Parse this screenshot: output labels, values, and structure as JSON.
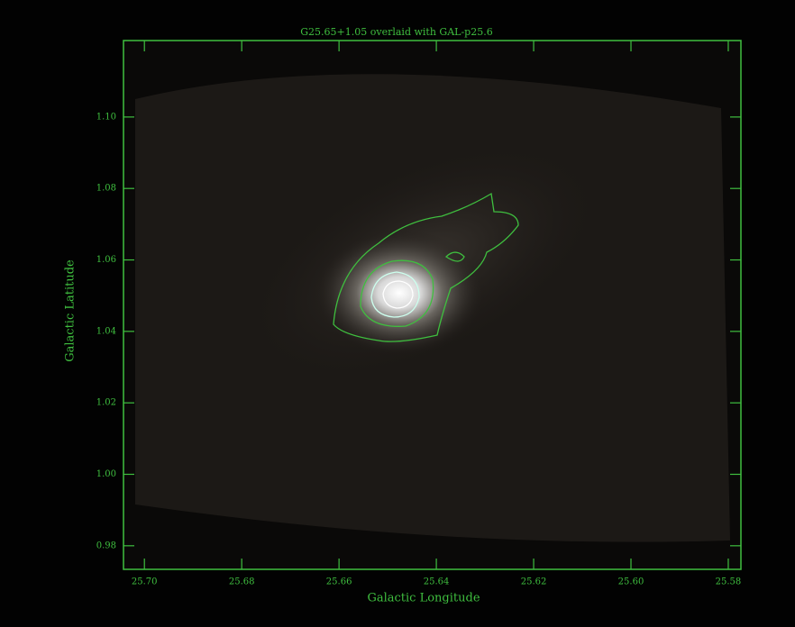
{
  "chart_data": {
    "type": "image",
    "title": "G25.65+1.05 overlaid with GAL-p25.6",
    "xlabel": "Galactic Longitude",
    "ylabel": "Galactic Latitude",
    "color": "#3fbf3f",
    "xlim": [
      25.7043,
      25.5774
    ],
    "ylim": [
      0.9734,
      1.1214
    ],
    "xticks": [
      {
        "value": 25.7,
        "label": "25.70"
      },
      {
        "value": 25.68,
        "label": "25.68"
      },
      {
        "value": 25.66,
        "label": "25.66"
      },
      {
        "value": 25.64,
        "label": "25.64"
      },
      {
        "value": 25.62,
        "label": "25.62"
      },
      {
        "value": 25.6,
        "label": "25.60"
      },
      {
        "value": 25.58,
        "label": "25.58"
      }
    ],
    "yticks": [
      {
        "value": 0.98,
        "label": "0.98"
      },
      {
        "value": 1.0,
        "label": "1.00"
      },
      {
        "value": 1.02,
        "label": "1.02"
      },
      {
        "value": 1.04,
        "label": "1.04"
      },
      {
        "value": 1.06,
        "label": "1.06"
      },
      {
        "value": 1.08,
        "label": "1.08"
      },
      {
        "value": 1.1,
        "label": "1.10"
      }
    ]
  }
}
